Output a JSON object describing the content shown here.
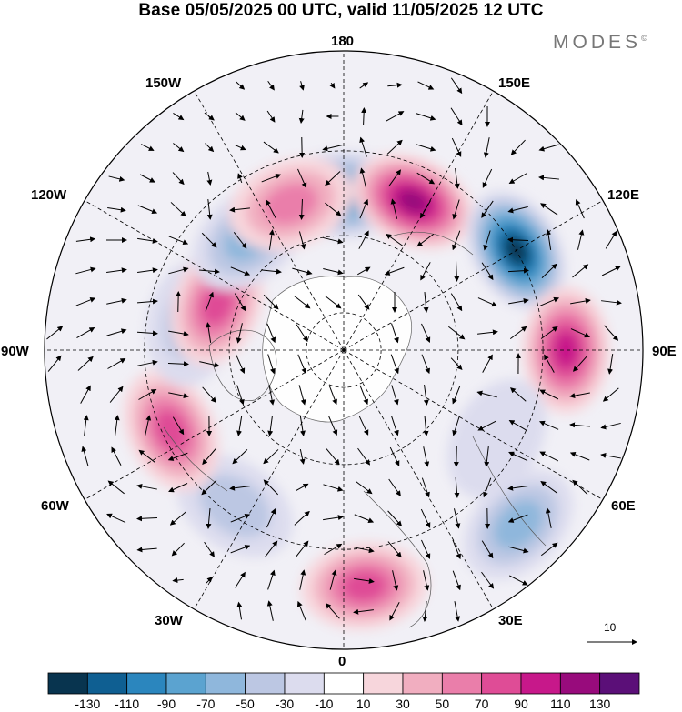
{
  "title": "Base 05/05/2025 00 UTC, valid 11/05/2025 12 UTC",
  "brand": "MODES",
  "brand_mark": "©",
  "longitude_labels": {
    "180": "180",
    "150E": "150E",
    "120E": "120E",
    "90E": "90E",
    "60E": "60E",
    "30E": "30E",
    "0": "0",
    "30W": "30W",
    "60W": "60W",
    "90W": "90W",
    "120W": "120W",
    "150W": "150W"
  },
  "reference_vector": {
    "label": "10",
    "magnitude": 10
  },
  "colorbar": {
    "colors": [
      "#08344f",
      "#0f5f92",
      "#2b86be",
      "#5ba3d0",
      "#8fb7dc",
      "#bcc7e3",
      "#dcdcee",
      "#ffffff",
      "#f7d6dc",
      "#f1aec0",
      "#ea7eaa",
      "#df4c96",
      "#c7188a",
      "#980b7c",
      "#5b0f78"
    ],
    "tick_labels": [
      "-130",
      "-110",
      "-90",
      "-70",
      "-50",
      "-30",
      "-10",
      "10",
      "30",
      "50",
      "70",
      "90",
      "110",
      "130"
    ]
  },
  "map_data": {
    "projection": "north-polar-stereographic",
    "field_anomalies": [
      {
        "lon": 180,
        "lat": 50,
        "value": -100
      },
      {
        "lon": 155,
        "lat": 48,
        "value": 120
      },
      {
        "lon": 120,
        "lat": 40,
        "value": -130
      },
      {
        "lon": 90,
        "lat": 35,
        "value": 90
      },
      {
        "lon": 60,
        "lat": 45,
        "value": -20
      },
      {
        "lon": 45,
        "lat": 30,
        "value": -60
      },
      {
        "lon": 5,
        "lat": 32,
        "value": 80
      },
      {
        "lon": -35,
        "lat": 42,
        "value": -40
      },
      {
        "lon": -65,
        "lat": 42,
        "value": 80
      },
      {
        "lon": -100,
        "lat": 50,
        "value": -40
      },
      {
        "lon": -110,
        "lat": 55,
        "value": 70
      },
      {
        "lon": -140,
        "lat": 52,
        "value": -60
      },
      {
        "lon": -160,
        "lat": 50,
        "value": 60
      }
    ]
  }
}
